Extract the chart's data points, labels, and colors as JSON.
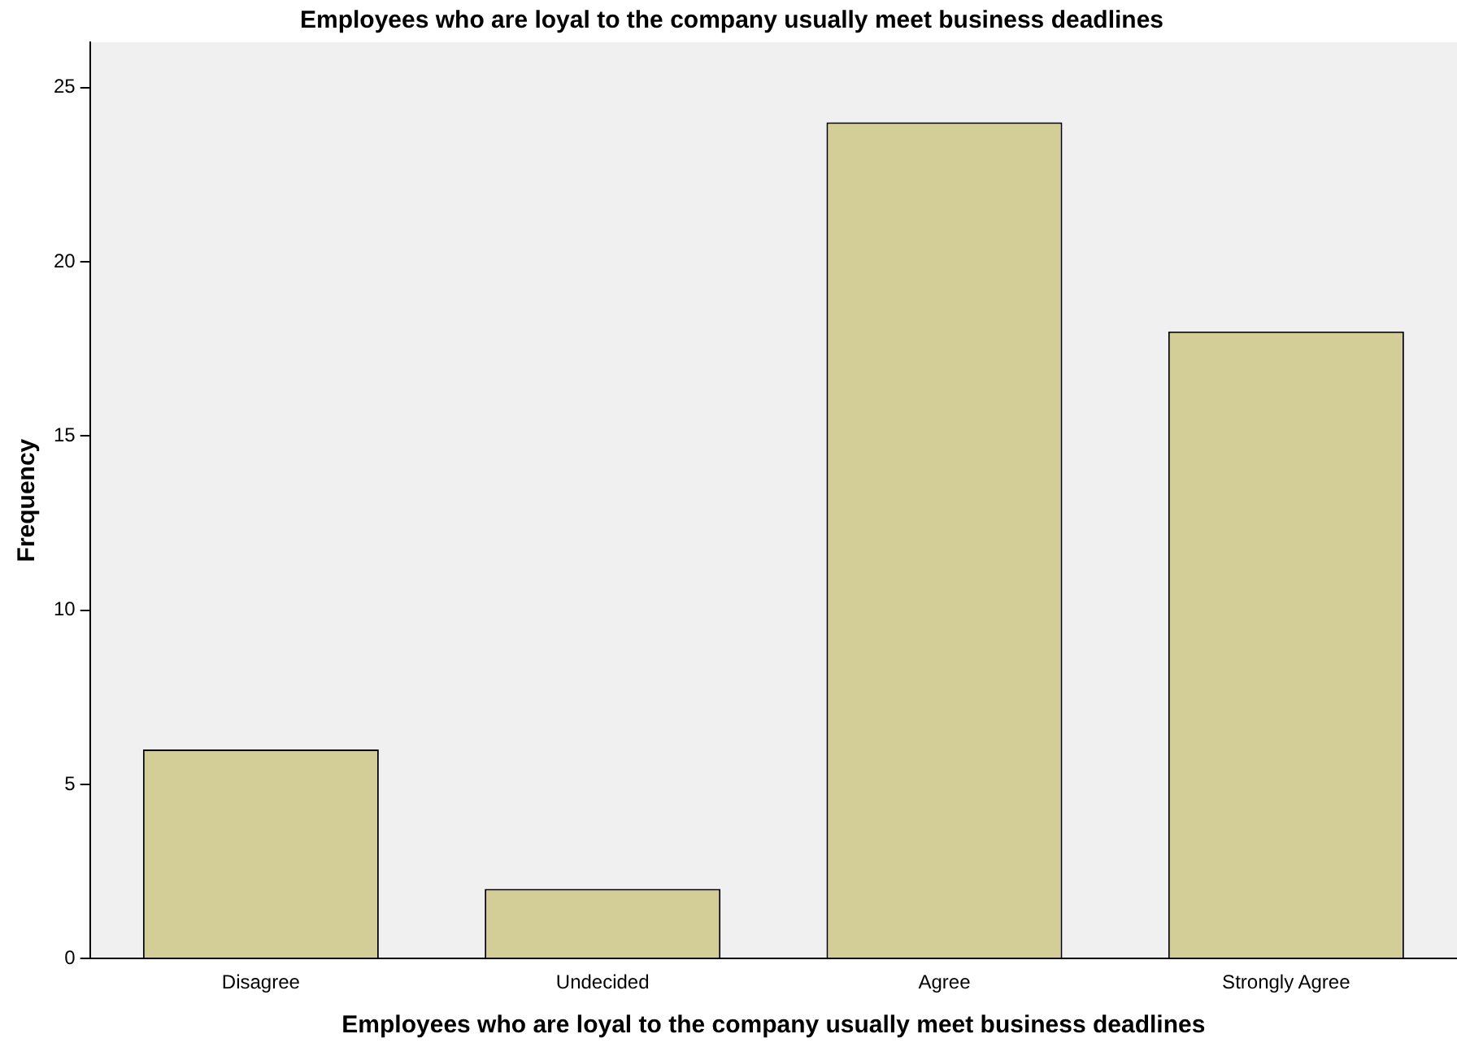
{
  "chart_data": {
    "type": "bar",
    "title": "Employees who are loyal to the company usually meet business deadlines",
    "xlabel": "Employees who are loyal to the company usually meet business deadlines",
    "ylabel": "Frequency",
    "categories": [
      "Disagree",
      "Undecided",
      "Agree",
      "Strongly Agree"
    ],
    "values": [
      6,
      2,
      24,
      18
    ],
    "color": "#d3ce97",
    "ylim": [
      0,
      26.3
    ],
    "yticks": [
      0,
      5,
      10,
      15,
      20,
      25
    ],
    "grid": false,
    "legend": false
  }
}
